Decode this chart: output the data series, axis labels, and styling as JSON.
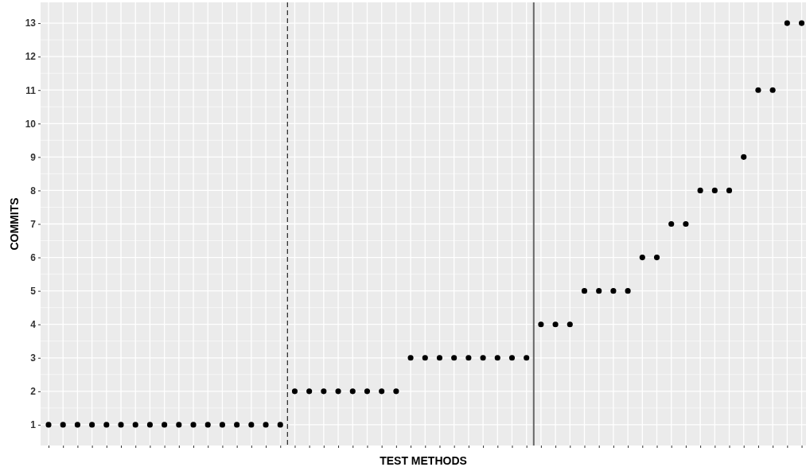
{
  "chart_data": {
    "type": "scatter",
    "xlabel": "TEST METHODS",
    "ylabel": "COMMITS",
    "categories": [
      null,
      null,
      null,
      null,
      null,
      null,
      null,
      null,
      null,
      null,
      null,
      null,
      null,
      null,
      null,
      null,
      null,
      null,
      null,
      null,
      null,
      null,
      null,
      null,
      null,
      null,
      null,
      null,
      null,
      null,
      null,
      null,
      null,
      null,
      null,
      null,
      null,
      null,
      null,
      null,
      null,
      null,
      null,
      null,
      null,
      null,
      null,
      null,
      null,
      null,
      null,
      null,
      null
    ],
    "series": [
      {
        "color": "#000000",
        "values": [
          1,
          1,
          1,
          1,
          1,
          1,
          1,
          1,
          1,
          1,
          1,
          1,
          1,
          1,
          1,
          1,
          1,
          2,
          2,
          2,
          2,
          2,
          2,
          2,
          2,
          3,
          3,
          3,
          3,
          3,
          3,
          3,
          3,
          3,
          4,
          4,
          4,
          5,
          5,
          5,
          5,
          6,
          6,
          7,
          7,
          8,
          8,
          8,
          9,
          11,
          11,
          13,
          13
        ]
      }
    ],
    "marker": "circle",
    "ylim": [
      0.38,
      13.62
    ],
    "yticks": [
      1,
      2,
      3,
      4,
      5,
      6,
      7,
      8,
      9,
      10,
      11,
      12,
      13
    ],
    "grid": true
  }
}
